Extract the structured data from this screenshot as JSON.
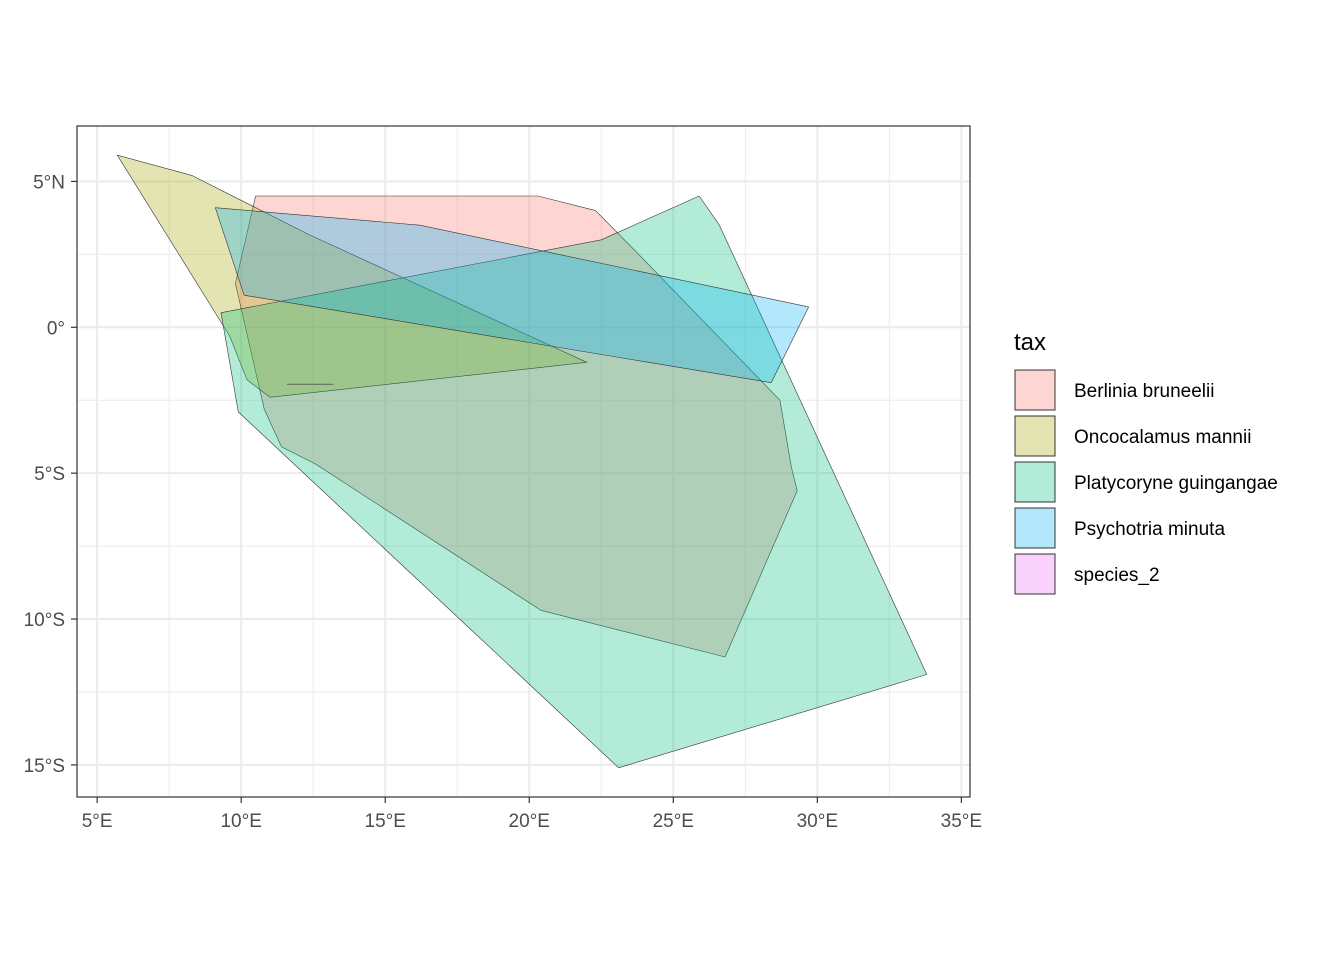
{
  "chart_data": {
    "type": "map",
    "xlabel": "",
    "ylabel": "",
    "xlim": [
      4.3,
      35.3
    ],
    "ylim": [
      -16.1,
      6.9
    ],
    "x_ticks": [
      {
        "value": 5,
        "label": "5°E"
      },
      {
        "value": 10,
        "label": "10°E"
      },
      {
        "value": 15,
        "label": "15°E"
      },
      {
        "value": 20,
        "label": "20°E"
      },
      {
        "value": 25,
        "label": "25°E"
      },
      {
        "value": 30,
        "label": "30°E"
      },
      {
        "value": 35,
        "label": "35°E"
      }
    ],
    "y_ticks": [
      {
        "value": 5,
        "label": "5°N"
      },
      {
        "value": 0,
        "label": "0°"
      },
      {
        "value": -5,
        "label": "5°S"
      },
      {
        "value": -10,
        "label": "10°S"
      },
      {
        "value": -15,
        "label": "15°S"
      }
    ],
    "grid": true,
    "legend": {
      "title": "tax",
      "placement": "right",
      "entries": [
        {
          "name": "Berlinia bruneelii",
          "color": "#F8766D"
        },
        {
          "name": "Oncocalamus mannii",
          "color": "#A3A500"
        },
        {
          "name": "Platycoryne guingangae",
          "color": "#00BF7D"
        },
        {
          "name": "Psychotria minuta",
          "color": "#00B0F6"
        },
        {
          "name": "species_2",
          "color": "#E76BF3"
        }
      ]
    },
    "fill_opacity": 0.3,
    "series": [
      {
        "name": "Berlinia bruneelii",
        "color": "#F8766D",
        "polygon": [
          [
            10.5,
            4.5
          ],
          [
            20.3,
            4.5
          ],
          [
            22.3,
            4.0
          ],
          [
            23.7,
            2.6
          ],
          [
            28.7,
            -2.5
          ],
          [
            29.1,
            -4.8
          ],
          [
            29.3,
            -5.6
          ],
          [
            26.8,
            -11.3
          ],
          [
            20.4,
            -9.7
          ],
          [
            12.6,
            -4.7
          ],
          [
            11.4,
            -4.1
          ],
          [
            10.8,
            -2.8
          ],
          [
            9.8,
            1.5
          ]
        ]
      },
      {
        "name": "Oncocalamus mannii",
        "color": "#A3A500",
        "polygon": [
          [
            5.7,
            5.9
          ],
          [
            8.3,
            5.2
          ],
          [
            12.3,
            3.2
          ],
          [
            22.0,
            -1.2
          ],
          [
            11.0,
            -2.4
          ],
          [
            10.2,
            -1.8
          ],
          [
            9.6,
            -0.3
          ]
        ]
      },
      {
        "name": "Platycoryne guingangae",
        "color": "#00BF7D",
        "polygon": [
          [
            25.9,
            4.5
          ],
          [
            26.6,
            3.5
          ],
          [
            33.8,
            -11.9
          ],
          [
            23.1,
            -15.1
          ],
          [
            9.9,
            -2.9
          ],
          [
            9.3,
            0.5
          ],
          [
            22.5,
            3.0
          ]
        ]
      },
      {
        "name": "Psychotria minuta",
        "color": "#00B0F6",
        "polygon": [
          [
            9.1,
            4.1
          ],
          [
            16.2,
            3.5
          ],
          [
            29.7,
            0.7
          ],
          [
            28.4,
            -1.9
          ],
          [
            10.1,
            1.1
          ]
        ]
      },
      {
        "name": "species_2",
        "color": "#E76BF3",
        "polygon": [
          [
            11.6,
            -1.95
          ],
          [
            13.2,
            -1.95
          ]
        ]
      }
    ]
  }
}
